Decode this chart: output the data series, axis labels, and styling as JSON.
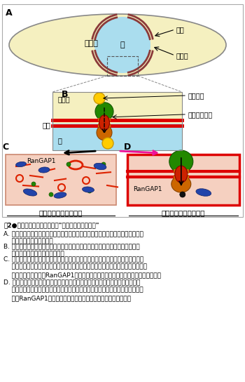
{
  "fig_width": 3.5,
  "fig_height": 5.44,
  "dpi": 100,
  "bg_color": "#ffffff",
  "cell_bg": "#f5f0c0",
  "nucleus_bg": "#aaddee",
  "panel_bg_cd": "#f5d0c0",
  "nuclear_membrane_color": "#8B4513",
  "panel_A_label": "A",
  "panel_B_label": "B",
  "panel_C_label": "C",
  "panel_D_label": "D",
  "cytoplasm_text": "細胞質",
  "nucleus_text": "核",
  "nuclear_membrane_text": "核膜",
  "nuclear_pore_text": "核膜孔",
  "specific_substance_text": "特定物質",
  "nuclear_pore_complex_text": "核膜孔複合体",
  "nuclear_membrane_label_B": "核膜",
  "nucleus_label_B": "核",
  "cytoplasm_label_B": "細胞質",
  "rangap1_text": "RanGAP1",
  "C_title": "核膜・核膜孔　消失型",
  "D_title": "核膜・核膜孔　維持型",
  "caption_title": "噗2●細胞分裂での核膜崩壊と\"バーチャル核膜崩壊\"",
  "caption_A": "A. 細胞の概念図。中央は細胞核、細胞核の周辺は核膜、核膜にあるギャップは核膜孔、核以外は細胞質。",
  "caption_B": "B. 核膜孔周辺部の拡大。中央の構造は核膜孔複合体、二重線は核膜、黄色の丸は、核に移動する物質を示す。",
  "caption_C": "C. 高等動植物で見られる細胞分裂期の核膜崩壊。核膜・核膜孔ともに一時的に消失することによって、核内外の物質が混ざり合う。赤線は核膜崩壊でバラバラになった核膜、青丸はRanGAP1、小さい丸や線はバラバラになった核膜孔複合体。",
  "caption_D": "D. 分裂酵母で見つかったバーチャル核膜崩壊。核膜孔複合体の構造も保ったまま、選択的物質輸送機能が停止し、核内外の物質移動が自由になり、混ざり合う。RanGAP1は、通常細胞質に存在するが、核内に移行する。"
}
